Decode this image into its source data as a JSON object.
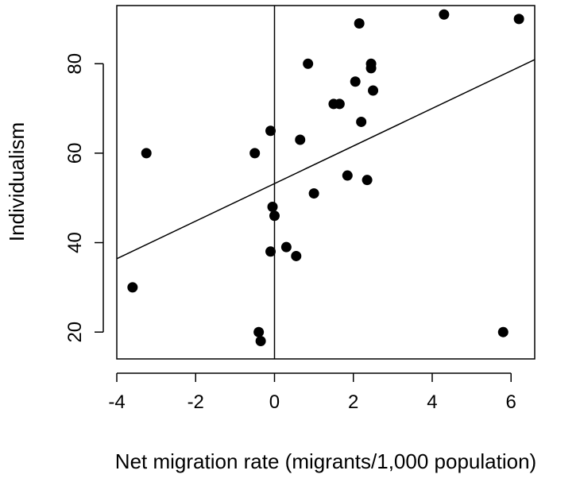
{
  "chart_data": {
    "type": "scatter",
    "xlabel": "Net migration rate (migrants/1,000 population)",
    "ylabel": "Individualism",
    "xlim": [
      -4,
      6.6
    ],
    "ylim": [
      14,
      93
    ],
    "x_ticks": [
      -4,
      -2,
      0,
      2,
      4,
      6
    ],
    "x_tick_labels": [
      "-4",
      "-2",
      "0",
      "2",
      "4",
      "6"
    ],
    "y_ticks": [
      20,
      40,
      60,
      80
    ],
    "y_tick_labels": [
      "20",
      "40",
      "60",
      "80"
    ],
    "grid": false,
    "reference_line": {
      "type": "vertical",
      "x": 0
    },
    "regression_line": {
      "intercept": 53.2,
      "slope": 4.2
    },
    "points": [
      {
        "x": -3.6,
        "y": 30
      },
      {
        "x": -3.25,
        "y": 60
      },
      {
        "x": -0.5,
        "y": 60
      },
      {
        "x": -0.4,
        "y": 20
      },
      {
        "x": -0.35,
        "y": 18
      },
      {
        "x": -0.1,
        "y": 65
      },
      {
        "x": -0.1,
        "y": 38
      },
      {
        "x": -0.05,
        "y": 48
      },
      {
        "x": 0.0,
        "y": 46
      },
      {
        "x": 0.3,
        "y": 39
      },
      {
        "x": 0.55,
        "y": 37
      },
      {
        "x": 0.65,
        "y": 63
      },
      {
        "x": 0.85,
        "y": 80
      },
      {
        "x": 1.0,
        "y": 51
      },
      {
        "x": 1.5,
        "y": 71
      },
      {
        "x": 1.65,
        "y": 71
      },
      {
        "x": 1.85,
        "y": 55
      },
      {
        "x": 2.05,
        "y": 76
      },
      {
        "x": 2.15,
        "y": 89
      },
      {
        "x": 2.2,
        "y": 67
      },
      {
        "x": 2.35,
        "y": 54
      },
      {
        "x": 2.45,
        "y": 80
      },
      {
        "x": 2.45,
        "y": 79
      },
      {
        "x": 2.5,
        "y": 74
      },
      {
        "x": 4.3,
        "y": 91
      },
      {
        "x": 5.8,
        "y": 20
      },
      {
        "x": 6.2,
        "y": 90
      }
    ]
  }
}
